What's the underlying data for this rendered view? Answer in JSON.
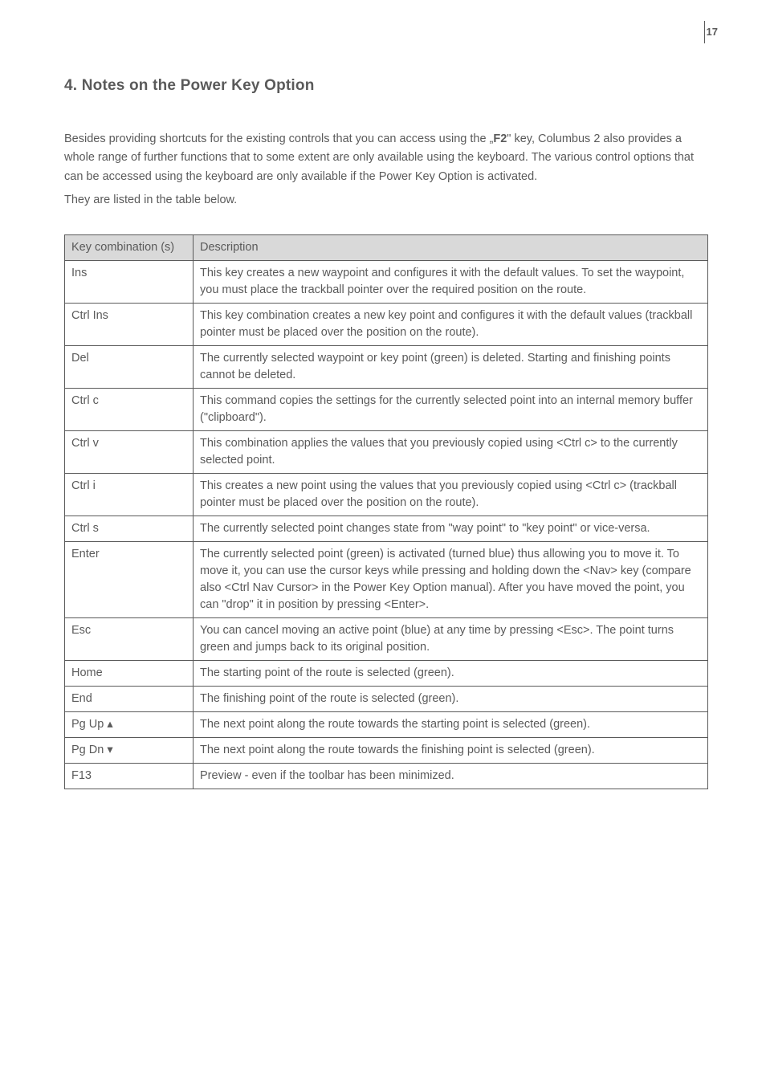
{
  "page_number": "17",
  "section_title": "4. Notes on the Power Key Option",
  "intro_paragraph_1_a": "Besides providing shortcuts for the existing controls that you can access using the „",
  "intro_bold": "F2",
  "intro_paragraph_1_b": "\" key, Columbus 2 also provides a whole range of further functions that to some extent are only available using the keyboard. The various control options that can be accessed using the keyboard are only available if the Power Key Option is activated.",
  "intro_paragraph_2": "They are listed in the table below.",
  "table": {
    "header_col1": "Key combination (s)",
    "header_col2": "Description",
    "rows": [
      {
        "key": "Ins",
        "desc": "This key creates a new waypoint and configures it with the default values. To set the waypoint, you must place the trackball pointer over the required position on the route."
      },
      {
        "key": "Ctrl Ins",
        "desc": "This key combination creates a new key point and configures it with the default values (trackball pointer must be placed over the position on the route)."
      },
      {
        "key": "Del",
        "desc": "The currently selected waypoint or key point (green) is deleted. Starting and finishing points cannot be deleted."
      },
      {
        "key": "Ctrl c",
        "desc": "This command copies the settings for the currently selected point into an internal memory buffer (\"clipboard\")."
      },
      {
        "key": "Ctrl v",
        "desc": "This combination applies the values that you previously copied using <Ctrl c> to the currently selected point."
      },
      {
        "key": "Ctrl i",
        "desc": "This creates a new point using the values that you previously copied using <Ctrl c> (trackball pointer must be placed over the position on the route)."
      },
      {
        "key": "Ctrl s",
        "desc": "The currently selected point changes state from \"way point\" to \"key point\" or vice-versa."
      },
      {
        "key": "Enter",
        "desc": "The currently selected point (green) is activated (turned blue) thus allowing you to move it. To move it, you can use the cursor keys while pressing and holding down the <Nav> key (compare also <Ctrl Nav Cursor> in the Power Key Option manual). After you have moved the point, you can \"drop\" it in position by pressing <Enter>."
      },
      {
        "key": "Esc",
        "desc": "You can cancel moving an active point (blue) at any time by pressing <Esc>. The point turns green and jumps back to its original position."
      },
      {
        "key": "Home",
        "desc": "The starting point of the route is selected (green)."
      },
      {
        "key": "End",
        "desc": "The finishing point of the route is selected (green)."
      },
      {
        "key": "Pg Up ▴",
        "desc": "The next point along the route towards the starting point is selected (green)."
      },
      {
        "key": "Pg Dn ▾",
        "desc": "The next point along the route towards the finishing point is selected (green)."
      },
      {
        "key": "F13",
        "desc": "Preview - even if the toolbar has been minimized."
      }
    ]
  }
}
